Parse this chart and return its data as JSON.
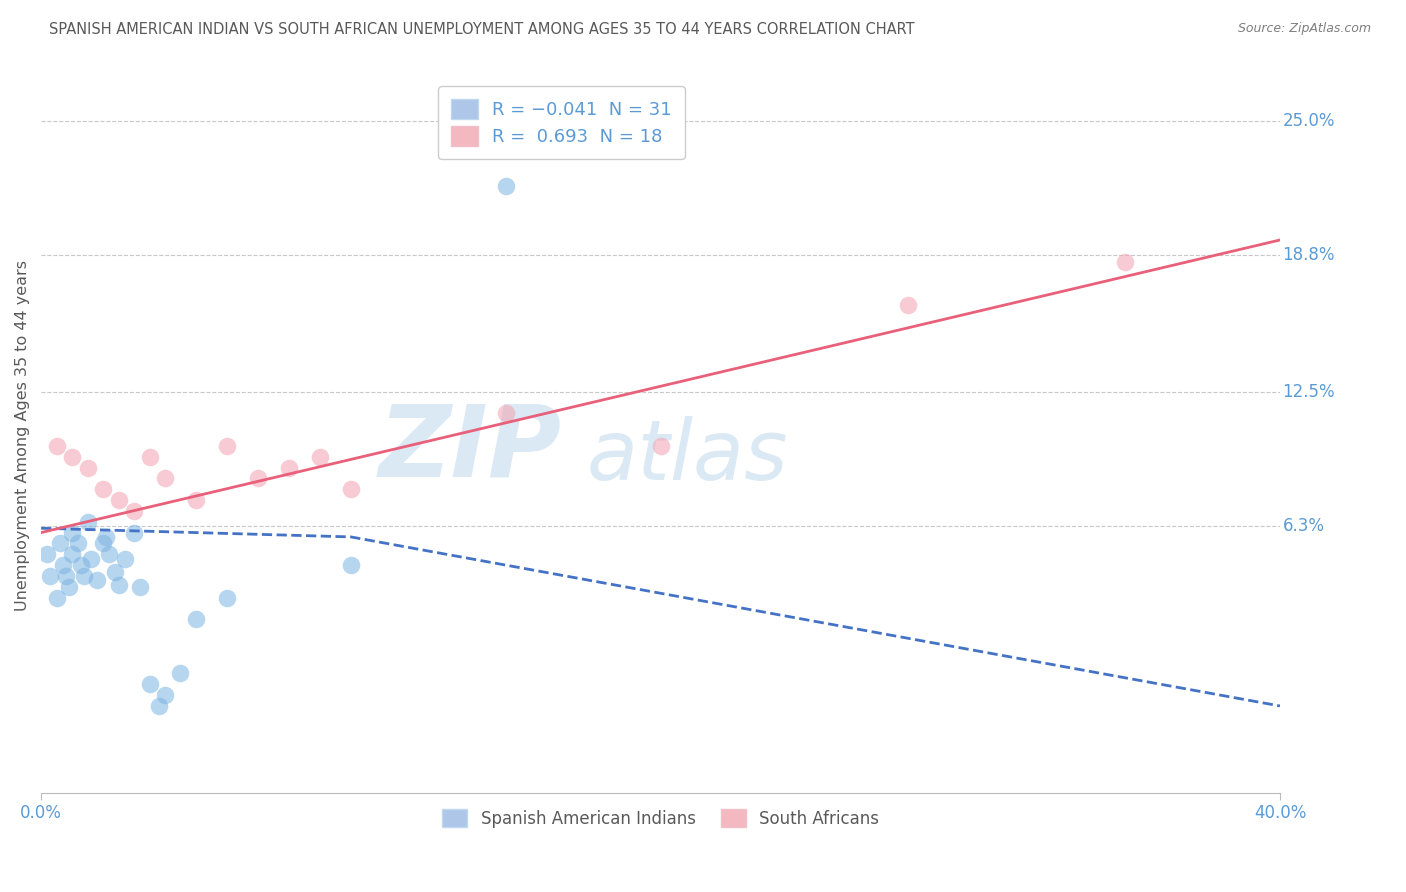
{
  "title": "SPANISH AMERICAN INDIAN VS SOUTH AFRICAN UNEMPLOYMENT AMONG AGES 35 TO 44 YEARS CORRELATION CHART",
  "source": "Source: ZipAtlas.com",
  "ylabel": "Unemployment Among Ages 35 to 44 years",
  "xlim": [
    0.0,
    0.4
  ],
  "ylim": [
    -0.06,
    0.27
  ],
  "x_tick_labels": [
    "0.0%",
    "40.0%"
  ],
  "x_tick_values": [
    0.0,
    0.4
  ],
  "y_tick_labels": [
    "25.0%",
    "18.8%",
    "12.5%",
    "6.3%"
  ],
  "y_tick_values": [
    0.25,
    0.188,
    0.125,
    0.063
  ],
  "legend_bottom": [
    "Spanish American Indians",
    "South Africans"
  ],
  "blue_scatter_x": [
    0.002,
    0.003,
    0.005,
    0.006,
    0.007,
    0.008,
    0.009,
    0.01,
    0.01,
    0.012,
    0.013,
    0.014,
    0.015,
    0.016,
    0.018,
    0.02,
    0.021,
    0.022,
    0.024,
    0.025,
    0.027,
    0.03,
    0.032,
    0.035,
    0.038,
    0.04,
    0.045,
    0.05,
    0.06,
    0.1,
    0.15
  ],
  "blue_scatter_y": [
    0.05,
    0.04,
    0.03,
    0.055,
    0.045,
    0.04,
    0.035,
    0.06,
    0.05,
    0.055,
    0.045,
    0.04,
    0.065,
    0.048,
    0.038,
    0.055,
    0.058,
    0.05,
    0.042,
    0.036,
    0.048,
    0.06,
    0.035,
    -0.01,
    -0.02,
    -0.015,
    -0.005,
    0.02,
    0.03,
    0.045,
    0.22
  ],
  "pink_scatter_x": [
    0.005,
    0.01,
    0.015,
    0.02,
    0.025,
    0.03,
    0.035,
    0.04,
    0.05,
    0.06,
    0.07,
    0.08,
    0.09,
    0.1,
    0.15,
    0.2,
    0.28,
    0.35
  ],
  "pink_scatter_y": [
    0.1,
    0.095,
    0.09,
    0.08,
    0.075,
    0.07,
    0.095,
    0.085,
    0.075,
    0.1,
    0.085,
    0.09,
    0.095,
    0.08,
    0.115,
    0.1,
    0.165,
    0.185
  ],
  "blue_line_x": [
    0.0,
    0.1,
    0.4
  ],
  "blue_line_y": [
    0.062,
    0.058,
    -0.02
  ],
  "pink_line_x": [
    0.0,
    0.4
  ],
  "pink_line_y": [
    0.06,
    0.195
  ],
  "scatter_size": 160,
  "scatter_alpha": 0.55,
  "blue_color": "#7ab3e0",
  "pink_color": "#f4a0b0",
  "blue_line_color": "#4472c4",
  "pink_line_color": "#e8607a",
  "title_color": "#595959",
  "source_color": "#7f7f7f",
  "axis_label_color": "#595959",
  "tick_color": "#5b9bd5",
  "grid_color": "#c8c8c8",
  "background_color": "#ffffff",
  "watermark_color": "#b8d4ed",
  "watermark_alpha": 0.5
}
